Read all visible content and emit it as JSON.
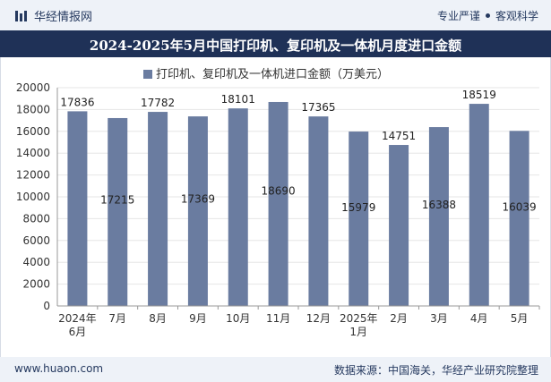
{
  "header": {
    "brand": "华经情报网",
    "tag1": "专业严谨",
    "tag2": "客观科学"
  },
  "footer": {
    "url": "www.huaon.com",
    "source": "数据来源：中国海关，华经产业研究院整理"
  },
  "colors": {
    "bar": "#6a7ca0",
    "title_bg": "#1f3157",
    "band_bg": "#eef2f8"
  },
  "chart_data": {
    "type": "bar",
    "title": "2024-2025年5月中国打印机、复印机及一体机月度进口金额",
    "legend": "打印机、复印机及一体机进口金额（万美元）",
    "categories": [
      [
        "2024年",
        "6月"
      ],
      [
        "7月"
      ],
      [
        "8月"
      ],
      [
        "9月"
      ],
      [
        "10月"
      ],
      [
        "11月"
      ],
      [
        "12月"
      ],
      [
        "2025年",
        "1月"
      ],
      [
        "2月"
      ],
      [
        "3月"
      ],
      [
        "4月"
      ],
      [
        "5月"
      ]
    ],
    "values": [
      17836,
      17215,
      17782,
      17369,
      18101,
      18690,
      17365,
      15979,
      14751,
      16388,
      18519,
      16039
    ],
    "label_placement": [
      "top",
      "middle",
      "top",
      "middle",
      "top",
      "middle",
      "top",
      "middle",
      "top",
      "middle",
      "top",
      "middle"
    ],
    "ylim": [
      0,
      20000
    ],
    "yticks": [
      0,
      2000,
      4000,
      6000,
      8000,
      10000,
      12000,
      14000,
      16000,
      18000,
      20000
    ],
    "legend_position": "top"
  }
}
